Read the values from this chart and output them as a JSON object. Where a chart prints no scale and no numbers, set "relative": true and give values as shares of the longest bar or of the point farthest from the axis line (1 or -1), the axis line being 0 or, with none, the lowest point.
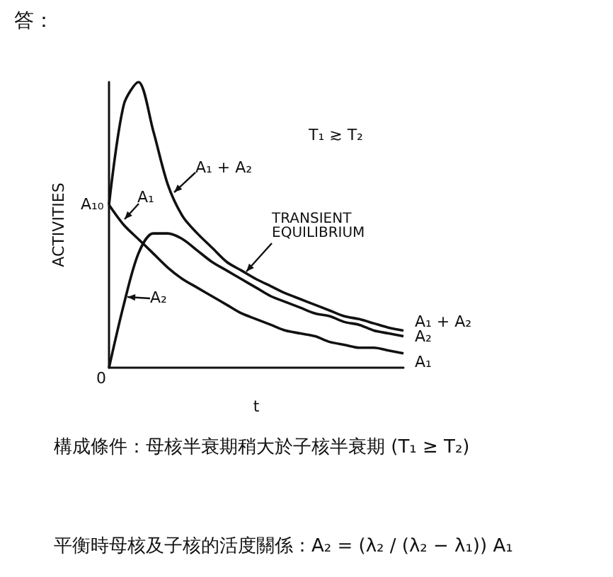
{
  "chart_data": {
    "type": "line",
    "title": "答：",
    "xlabel": "t",
    "ylabel": "ACTIVITIES",
    "relative": true,
    "marker": "none",
    "line_style": "solid",
    "categories": [
      null,
      null,
      null,
      null,
      null,
      null,
      null,
      null,
      null,
      null,
      null,
      null,
      null,
      null,
      null,
      null,
      null,
      null,
      null,
      null,
      null
    ],
    "series": [
      {
        "name": "A₁ + A₂",
        "color": "#111111",
        "values": [
          0.57,
          0.92,
          1.0,
          0.83,
          0.64,
          0.53,
          0.47,
          0.42,
          0.37,
          0.34,
          0.31,
          0.285,
          0.26,
          0.24,
          0.22,
          0.2,
          0.18,
          0.17,
          0.155,
          0.14,
          0.13
        ]
      },
      {
        "name": "A₂",
        "color": "#111111",
        "values": [
          0,
          0.22,
          0.4,
          0.47,
          0.47,
          0.45,
          0.41,
          0.37,
          0.34,
          0.31,
          0.28,
          0.25,
          0.23,
          0.21,
          0.19,
          0.18,
          0.16,
          0.15,
          0.13,
          0.12,
          0.11
        ]
      },
      {
        "name": "A₁",
        "color": "#111111",
        "values": [
          0.57,
          0.5,
          0.45,
          0.4,
          0.35,
          0.31,
          0.28,
          0.25,
          0.22,
          0.19,
          0.17,
          0.15,
          0.13,
          0.12,
          0.11,
          0.09,
          0.08,
          0.07,
          0.07,
          0.06,
          0.05
        ]
      }
    ],
    "annotations": [
      "T₁ ≳ T₂",
      "A₁ + A₂",
      "A₁₀",
      "A₁",
      "TRANSIENT EQUILIBRIUM",
      "A₂",
      "0",
      "構成條件：母核半衰期稍大於子核半衰期 (T₁ ≥ T₂)",
      "平衡時母核及子核的活度關係：A₂ = (λ₂ / (λ₂ − λ₁)) A₁"
    ]
  }
}
